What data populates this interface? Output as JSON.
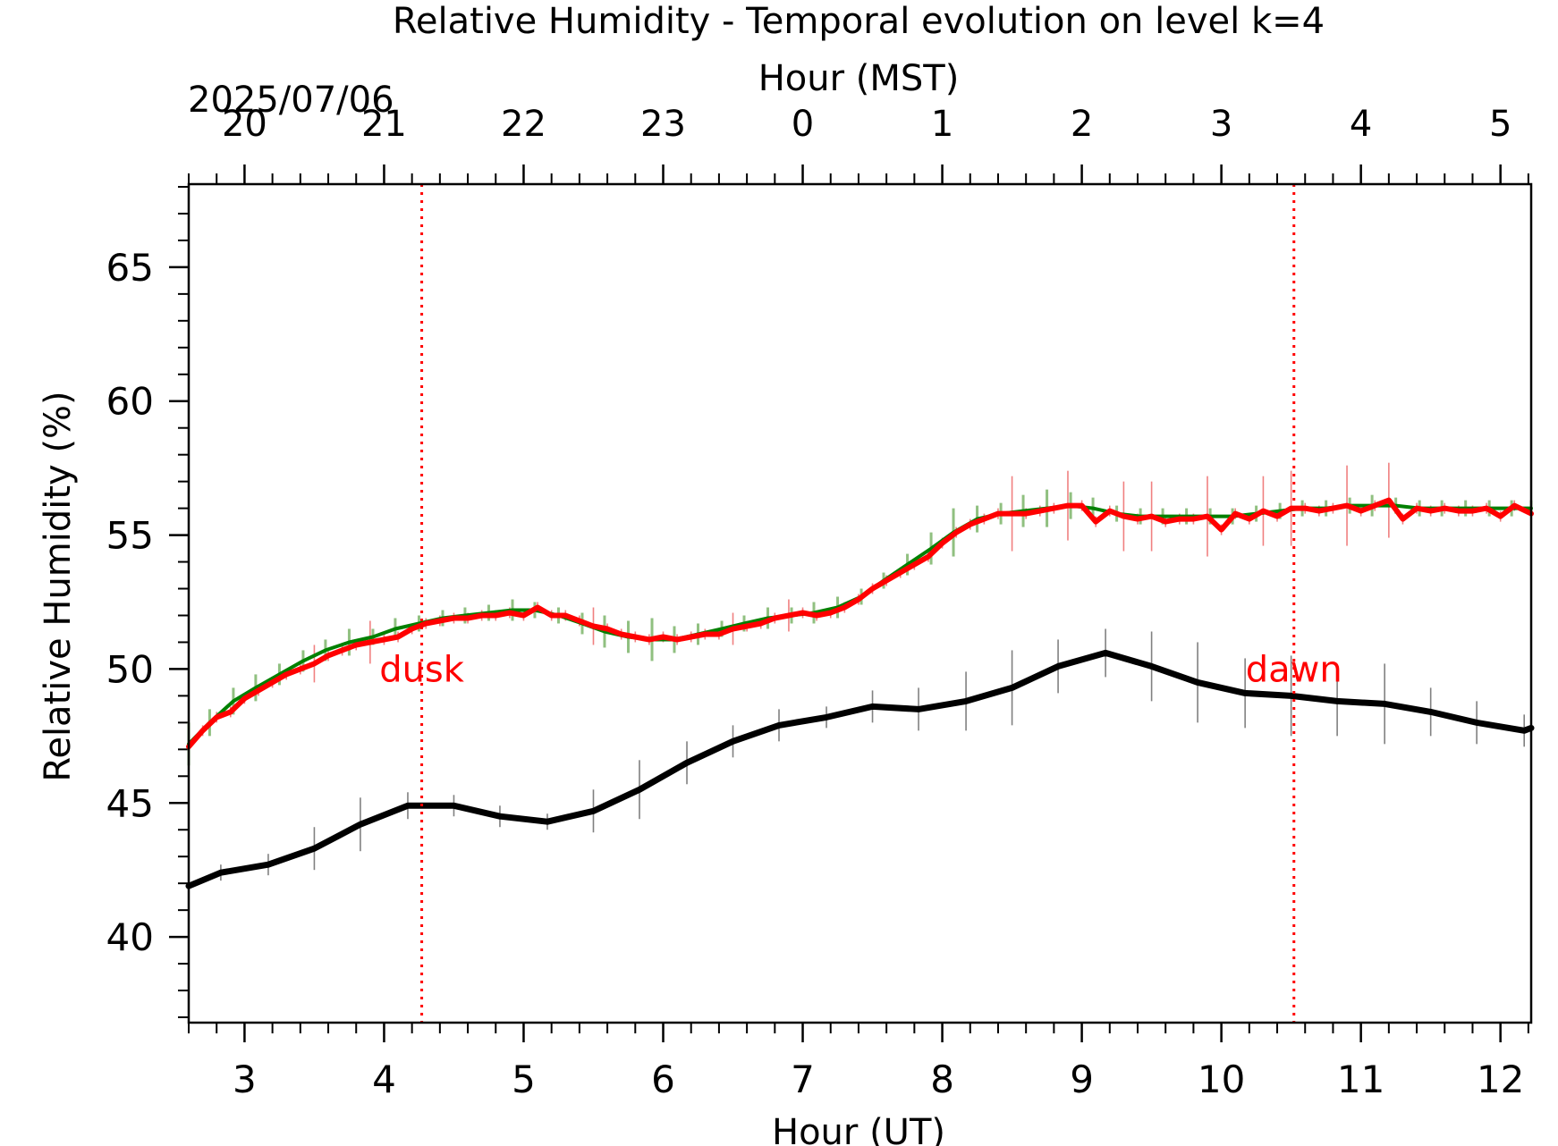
{
  "chart_data": {
    "type": "line",
    "title": "Relative Humidity - Temporal evolution on level k=4",
    "xlabel": "Hour (UT)",
    "ylabel": "Relative Humidity (%)",
    "top_xlabel": "Hour (MST)",
    "date_label": "2025/07/06",
    "xlim": [
      2.6,
      12.22
    ],
    "ylim": [
      36.8,
      68.1
    ],
    "x_ticks": [
      3,
      4,
      5,
      6,
      7,
      8,
      9,
      10,
      11,
      12
    ],
    "y_ticks": [
      40,
      45,
      50,
      55,
      60,
      65
    ],
    "top_ticks": [
      {
        "x": 3,
        "label": "20"
      },
      {
        "x": 4,
        "label": "21"
      },
      {
        "x": 5,
        "label": "22"
      },
      {
        "x": 6,
        "label": "23"
      },
      {
        "x": 7,
        "label": "0"
      },
      {
        "x": 8,
        "label": "1"
      },
      {
        "x": 9,
        "label": "2"
      },
      {
        "x": 10,
        "label": "3"
      },
      {
        "x": 11,
        "label": "4"
      },
      {
        "x": 12,
        "label": "5"
      }
    ],
    "grid": false,
    "annotations": [
      {
        "text": "dusk",
        "x": 4.27,
        "y": 50,
        "color": "#ff0000"
      },
      {
        "text": "dawn",
        "x": 10.52,
        "y": 50,
        "color": "#ff0000"
      }
    ],
    "vlines": [
      {
        "x": 4.27,
        "color": "#ff0000",
        "style": "dotted"
      },
      {
        "x": 10.52,
        "color": "#ff0000",
        "style": "dotted"
      }
    ],
    "series": [
      {
        "color": "#000000",
        "errorbar_color": "#808080",
        "x": [
          2.6,
          2.83,
          3.17,
          3.5,
          3.83,
          4.17,
          4.5,
          4.83,
          5.17,
          5.5,
          5.83,
          6.17,
          6.5,
          6.83,
          7.17,
          7.5,
          7.83,
          8.17,
          8.5,
          8.83,
          9.17,
          9.5,
          9.83,
          10.17,
          10.5,
          10.83,
          11.17,
          11.5,
          11.83,
          12.17,
          12.22
        ],
        "y": [
          41.9,
          42.4,
          42.7,
          43.3,
          44.2,
          44.9,
          44.9,
          44.5,
          44.3,
          44.7,
          45.5,
          46.5,
          47.3,
          47.9,
          48.2,
          48.6,
          48.5,
          48.8,
          49.3,
          50.1,
          50.6,
          50.1,
          49.5,
          49.1,
          49.0,
          48.8,
          48.7,
          48.4,
          48.0,
          47.7,
          47.8
        ],
        "yerr": [
          0.3,
          0.3,
          0.4,
          0.8,
          1.0,
          0.5,
          0.4,
          0.4,
          0.3,
          0.8,
          1.1,
          0.8,
          0.6,
          0.6,
          0.4,
          0.6,
          0.8,
          1.1,
          1.4,
          1.0,
          0.9,
          1.3,
          1.5,
          1.3,
          1.5,
          1.3,
          1.5,
          0.9,
          0.8,
          0.6,
          0.5
        ]
      },
      {
        "color": "#008000",
        "errorbar_color": "#90c080",
        "x": [
          2.6,
          2.75,
          2.92,
          3.08,
          3.25,
          3.42,
          3.58,
          3.75,
          3.92,
          4.08,
          4.25,
          4.42,
          4.58,
          4.75,
          4.92,
          5.08,
          5.25,
          5.42,
          5.58,
          5.75,
          5.92,
          6.08,
          6.25,
          6.42,
          6.58,
          6.75,
          6.92,
          7.08,
          7.25,
          7.42,
          7.58,
          7.75,
          7.92,
          8.08,
          8.25,
          8.42,
          8.58,
          8.75,
          8.92,
          9.08,
          9.25,
          9.42,
          9.58,
          9.75,
          9.92,
          10.08,
          10.25,
          10.42,
          10.58,
          10.75,
          10.92,
          11.08,
          11.25,
          11.42,
          11.58,
          11.75,
          11.92,
          12.08,
          12.22
        ],
        "y": [
          47.2,
          48.0,
          48.8,
          49.3,
          49.8,
          50.3,
          50.7,
          51.0,
          51.2,
          51.5,
          51.7,
          51.9,
          52.0,
          52.1,
          52.2,
          52.2,
          52.0,
          51.7,
          51.4,
          51.2,
          51.1,
          51.1,
          51.3,
          51.5,
          51.7,
          51.9,
          52.0,
          52.1,
          52.3,
          52.7,
          53.3,
          53.9,
          54.5,
          55.1,
          55.6,
          55.8,
          55.9,
          56.0,
          56.1,
          56.0,
          55.8,
          55.7,
          55.7,
          55.7,
          55.7,
          55.7,
          55.8,
          55.9,
          56.0,
          56.0,
          56.1,
          56.1,
          56.1,
          56.0,
          56.0,
          56.0,
          56.0,
          56.0,
          56.0
        ],
        "yerr": [
          0.8,
          0.5,
          0.5,
          0.5,
          0.4,
          0.4,
          0.4,
          0.5,
          0.3,
          0.4,
          0.3,
          0.3,
          0.3,
          0.3,
          0.4,
          0.3,
          0.3,
          0.4,
          0.6,
          0.6,
          0.8,
          0.5,
          0.4,
          0.3,
          0.3,
          0.4,
          0.3,
          0.4,
          0.4,
          0.3,
          0.3,
          0.4,
          0.6,
          0.9,
          0.5,
          0.4,
          0.6,
          0.7,
          0.5,
          0.4,
          0.3,
          0.3,
          0.3,
          0.3,
          0.3,
          0.3,
          0.3,
          0.3,
          0.3,
          0.3,
          0.3,
          0.4,
          0.3,
          0.3,
          0.3,
          0.3,
          0.3,
          0.3,
          0.3
        ]
      },
      {
        "color": "#ff0000",
        "errorbar_color": "#f08080",
        "x": [
          2.6,
          2.7,
          2.8,
          2.9,
          3.0,
          3.1,
          3.2,
          3.3,
          3.4,
          3.5,
          3.6,
          3.7,
          3.8,
          3.9,
          4.0,
          4.1,
          4.2,
          4.3,
          4.4,
          4.5,
          4.6,
          4.7,
          4.8,
          4.9,
          5.0,
          5.1,
          5.2,
          5.3,
          5.4,
          5.5,
          5.6,
          5.7,
          5.8,
          5.9,
          6.0,
          6.1,
          6.2,
          6.3,
          6.4,
          6.5,
          6.6,
          6.7,
          6.8,
          6.9,
          7.0,
          7.1,
          7.2,
          7.3,
          7.4,
          7.5,
          7.6,
          7.7,
          7.8,
          7.9,
          8.0,
          8.1,
          8.2,
          8.3,
          8.4,
          8.5,
          8.6,
          8.7,
          8.8,
          8.9,
          9.0,
          9.1,
          9.2,
          9.3,
          9.4,
          9.5,
          9.6,
          9.7,
          9.8,
          9.9,
          10.0,
          10.1,
          10.2,
          10.3,
          10.4,
          10.5,
          10.6,
          10.7,
          10.8,
          10.9,
          11.0,
          11.1,
          11.2,
          11.3,
          11.4,
          11.5,
          11.6,
          11.7,
          11.8,
          11.9,
          12.0,
          12.1,
          12.22
        ],
        "y": [
          47.1,
          47.7,
          48.2,
          48.4,
          48.9,
          49.2,
          49.5,
          49.8,
          50.0,
          50.2,
          50.5,
          50.7,
          50.9,
          51.0,
          51.1,
          51.2,
          51.5,
          51.7,
          51.8,
          51.9,
          51.9,
          52.0,
          52.0,
          52.1,
          52.0,
          52.3,
          52.0,
          52.0,
          51.8,
          51.6,
          51.5,
          51.3,
          51.2,
          51.1,
          51.2,
          51.1,
          51.2,
          51.3,
          51.3,
          51.5,
          51.6,
          51.7,
          51.9,
          52.0,
          52.1,
          52.0,
          52.1,
          52.3,
          52.6,
          53.0,
          53.3,
          53.6,
          53.9,
          54.2,
          54.7,
          55.1,
          55.4,
          55.6,
          55.8,
          55.8,
          55.8,
          55.9,
          56.0,
          56.1,
          56.1,
          55.5,
          55.9,
          55.7,
          55.6,
          55.7,
          55.5,
          55.6,
          55.6,
          55.7,
          55.2,
          55.8,
          55.6,
          55.9,
          55.7,
          56.0,
          56.0,
          55.9,
          56.0,
          56.1,
          55.9,
          56.1,
          56.3,
          55.6,
          56.0,
          55.9,
          56.0,
          55.9,
          55.9,
          56.0,
          55.7,
          56.1,
          55.8
        ],
        "yerr": [
          0.2,
          0.2,
          0.2,
          0.2,
          0.2,
          0.2,
          0.2,
          0.2,
          0.2,
          0.7,
          0.2,
          0.2,
          0.2,
          0.8,
          0.2,
          0.2,
          0.2,
          0.2,
          0.2,
          0.2,
          0.2,
          0.2,
          0.2,
          0.2,
          0.2,
          0.2,
          0.2,
          0.2,
          0.2,
          0.7,
          0.2,
          0.2,
          0.2,
          0.2,
          0.2,
          0.2,
          0.2,
          0.2,
          0.2,
          0.6,
          0.2,
          0.2,
          0.2,
          0.6,
          0.2,
          0.2,
          0.2,
          0.2,
          0.2,
          0.2,
          0.2,
          0.2,
          0.2,
          0.2,
          0.2,
          0.2,
          0.2,
          0.2,
          0.2,
          1.4,
          0.2,
          0.2,
          0.2,
          1.3,
          0.2,
          0.2,
          0.2,
          1.3,
          0.2,
          1.3,
          0.2,
          0.2,
          0.2,
          1.5,
          0.2,
          0.2,
          0.2,
          1.3,
          0.2,
          1.4,
          0.2,
          0.2,
          0.2,
          1.5,
          0.2,
          0.2,
          1.4,
          0.2,
          0.2,
          0.2,
          0.2,
          0.2,
          0.2,
          0.2,
          0.2,
          0.2,
          0.2
        ]
      }
    ]
  }
}
